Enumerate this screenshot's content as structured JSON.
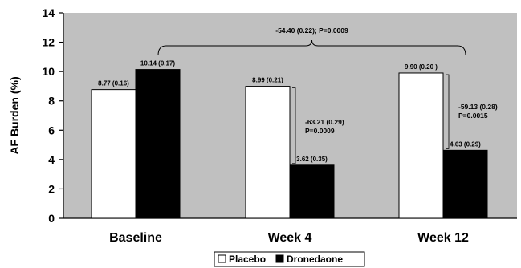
{
  "chart_data": {
    "type": "bar",
    "ylabel": "AF Burden (%)",
    "xlabel": "",
    "ylim": [
      0,
      14
    ],
    "yticks": [
      "0",
      "2",
      "4",
      "6",
      "8",
      "10",
      "12",
      "14"
    ],
    "categories": [
      "Baseline",
      "Week 4",
      "Week 12"
    ],
    "series": [
      {
        "name": "Placebo",
        "color": "#ffffff",
        "values": [
          8.77,
          8.99,
          9.9
        ],
        "labels": [
          "8.77 (0.16)",
          "8.99 (0.21)",
          "9.90 (0.20 )"
        ]
      },
      {
        "name": "Dronedaone",
        "color": "#000000",
        "values": [
          10.14,
          3.62,
          4.63
        ],
        "labels": [
          "10.14 (0.17)",
          "3.62 (0.35)",
          "4.63 (0.29)"
        ]
      }
    ],
    "annotations": {
      "overall": "-54.40 (0.22); P=0.0009",
      "week4": [
        "-63.21 (0.29)",
        "P=0.0009"
      ],
      "week12": [
        "-59.13 (0.28)",
        "P=0.0015"
      ]
    },
    "plot_background": "#c0c0c0",
    "grid": false,
    "legend_position": "bottom-center"
  }
}
